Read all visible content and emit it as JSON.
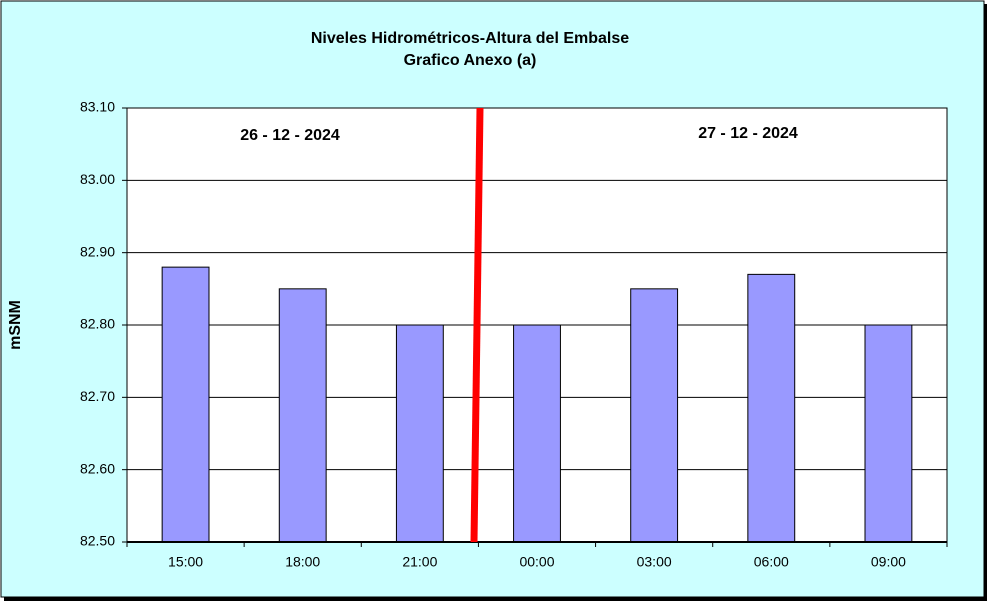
{
  "chart_data": {
    "type": "bar",
    "title": "Niveles Hidrométricos-Altura del Embalse",
    "subtitle": "Grafico Anexo (a)",
    "y_label": "mSNM",
    "annotations": [
      "26 - 12 - 2024",
      "27 - 12 - 2024"
    ],
    "categories": [
      "15:00",
      "18:00",
      "21:00",
      "00:00",
      "03:00",
      "06:00",
      "09:00"
    ],
    "values": [
      82.88,
      82.85,
      82.8,
      82.8,
      82.85,
      82.87,
      82.8
    ],
    "color": "#9999ff",
    "ylim": [
      82.5,
      83.1
    ],
    "yticks": [
      {
        "value": 82.5,
        "label": "82.50"
      },
      {
        "value": 82.6,
        "label": "82.60"
      },
      {
        "value": 82.7,
        "label": "82.70"
      },
      {
        "value": 82.8,
        "label": "82.80"
      },
      {
        "value": 82.9,
        "label": "82.90"
      },
      {
        "value": 83.0,
        "label": "83.00"
      },
      {
        "value": 83.1,
        "label": "83.10"
      }
    ],
    "grid": true
  }
}
